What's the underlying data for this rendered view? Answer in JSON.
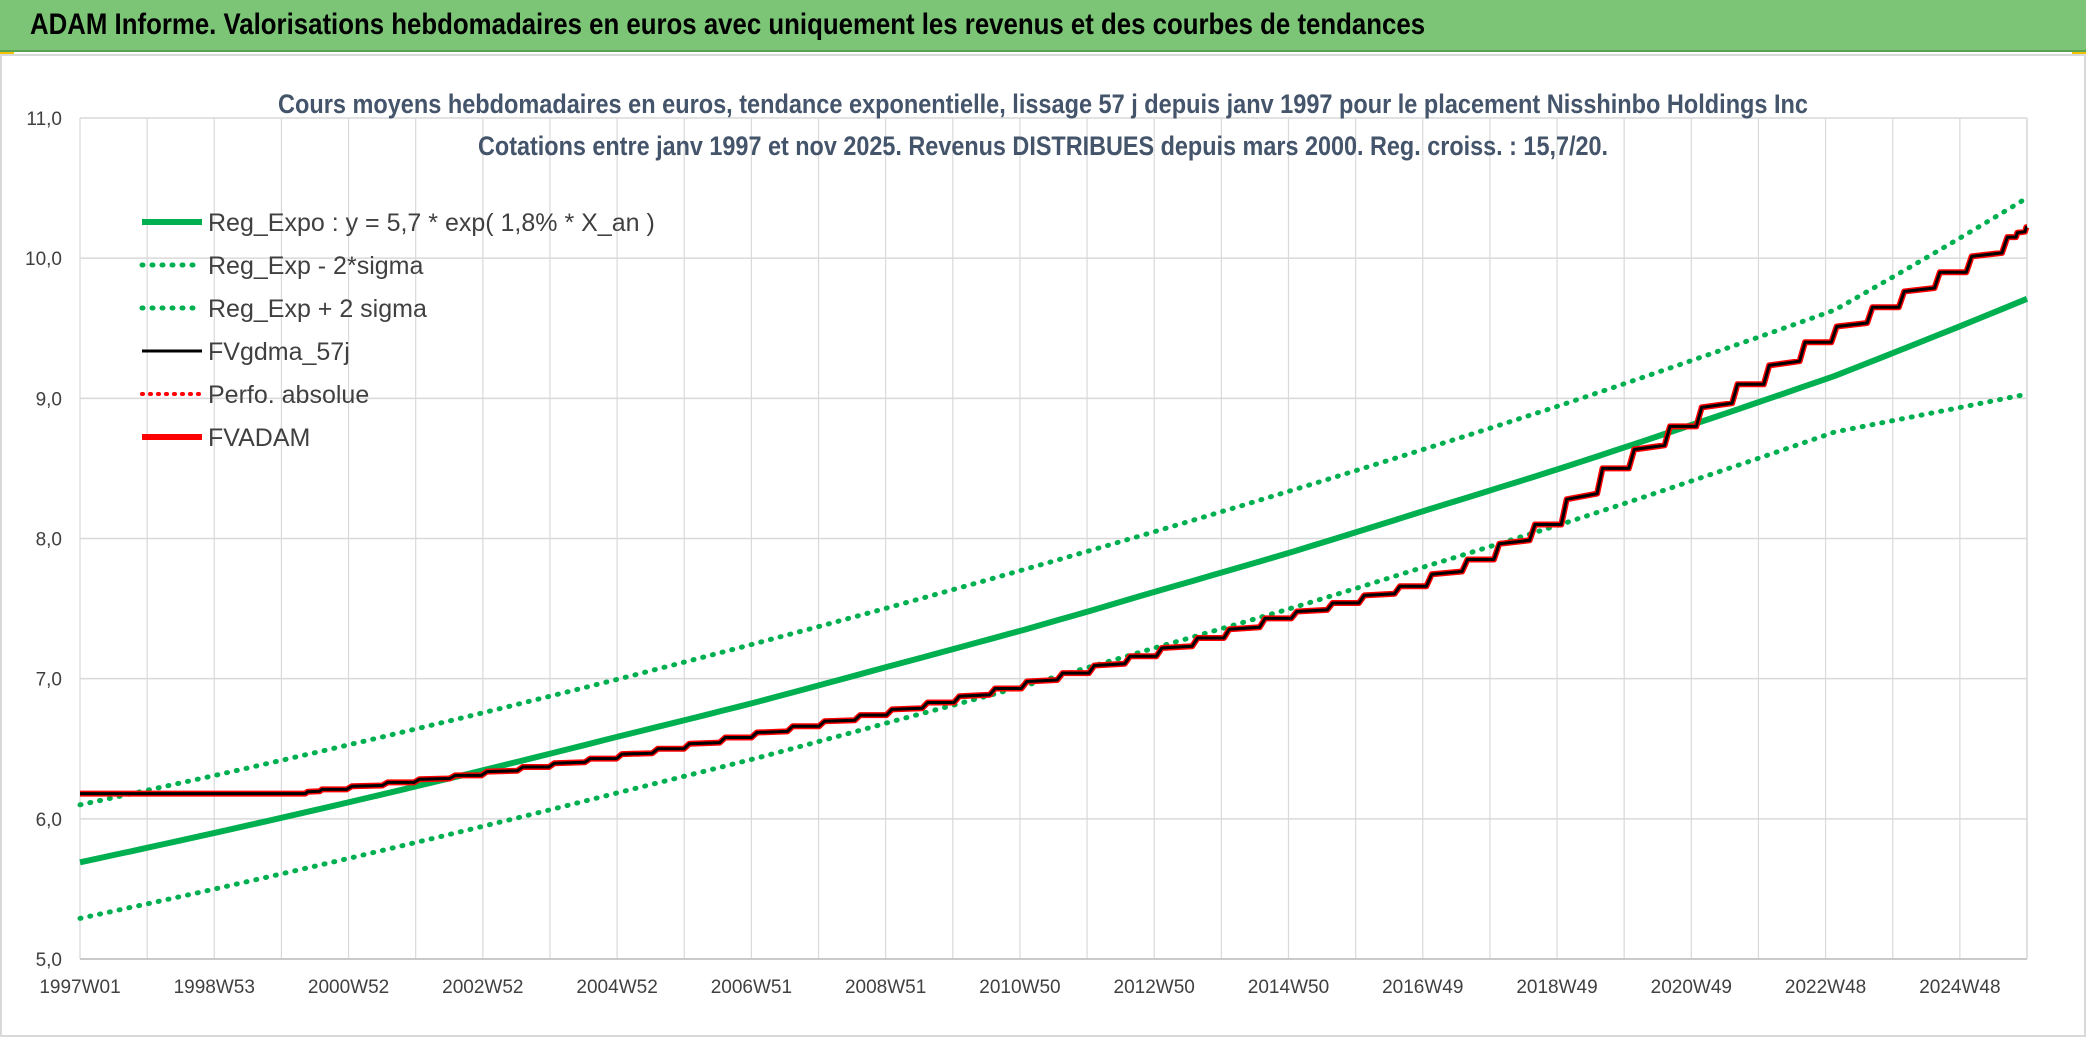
{
  "banner": {
    "title": "ADAM Informe. Valorisations hebdomadaires en euros avec uniquement les revenus et des courbes de tendances"
  },
  "colors": {
    "banner_bg": "#7cc576",
    "trend_green": "#00b050",
    "gdma_black": "#000000",
    "adam_red": "#ff0000",
    "title_text": "#44546a",
    "grid": "#d9d9d9"
  },
  "chart_data": {
    "type": "line",
    "title": "Cours moyens hebdomadaires en euros, tendance exponentielle, lissage 57 j depuis janv 1997 pour le placement Nisshinbo Holdings Inc",
    "subtitle": "Cotations entre janv 1997 et nov 2025. Revenus DISTRIBUES depuis mars 2000. Reg. croiss. : 15,7/20.",
    "xlabel": "",
    "ylabel": "",
    "x_ticks": [
      "1997W01",
      "1998W53",
      "2000W52",
      "2002W52",
      "2004W52",
      "2006W51",
      "2008W51",
      "2010W50",
      "2012W50",
      "2014W50",
      "2016W49",
      "2018W49",
      "2020W49",
      "2022W48",
      "2024W48"
    ],
    "x_range": [
      1997.0,
      2025.85
    ],
    "y_ticks": [
      "5,0",
      "6,0",
      "7,0",
      "8,0",
      "9,0",
      "10,0",
      "11,0"
    ],
    "ylim": [
      5.0,
      11.0
    ],
    "grid": true,
    "legend_position": "top-left",
    "series": [
      {
        "name": "Reg_Expo : y = 5,7 * exp( 1,8% *  X_an )",
        "style": "solid-thick",
        "x": [
          1997,
          1999,
          2001,
          2003,
          2005,
          2007,
          2009,
          2011,
          2013,
          2015,
          2017,
          2019,
          2021,
          2023,
          2025.85
        ],
        "y": [
          5.69,
          5.9,
          6.12,
          6.35,
          6.59,
          6.83,
          7.09,
          7.35,
          7.63,
          7.91,
          8.21,
          8.51,
          8.83,
          9.16,
          9.71
        ]
      },
      {
        "name": "Reg_Exp - 2*sigma",
        "style": "dotted",
        "x": [
          1997,
          1999,
          2001,
          2003,
          2005,
          2007,
          2009,
          2011,
          2013,
          2015,
          2017,
          2019,
          2021,
          2023,
          2025.85
        ],
        "y": [
          5.29,
          5.5,
          5.72,
          5.95,
          6.19,
          6.43,
          6.69,
          6.95,
          7.23,
          7.51,
          7.81,
          8.11,
          8.43,
          8.76,
          9.03
        ]
      },
      {
        "name": "Reg_Exp + 2 sigma",
        "style": "dotted",
        "x": [
          1997,
          1999,
          2001,
          2003,
          2005,
          2007,
          2009,
          2011,
          2013,
          2015,
          2017,
          2019,
          2021,
          2023,
          2025.85
        ],
        "y": [
          6.1,
          6.31,
          6.53,
          6.76,
          7.0,
          7.25,
          7.51,
          7.78,
          8.06,
          8.35,
          8.65,
          8.96,
          9.29,
          9.63,
          10.43
        ]
      },
      {
        "name": "FVgdma_57j",
        "style": "solid",
        "x": [
          1997.0,
          2000.2,
          2000.6,
          2001.6,
          2002.6,
          2003.6,
          2004.6,
          2005.6,
          2006.6,
          2007.6,
          2008.6,
          2009.6,
          2010.6,
          2011.6,
          2012.6,
          2013.6,
          2014.6,
          2015.6,
          2016.6,
          2017.6,
          2018.6,
          2019.6,
          2020.6,
          2021.6,
          2022.6,
          2023.6,
          2024.6,
          2025.6,
          2025.85
        ],
        "y": [
          6.18,
          6.18,
          6.21,
          6.26,
          6.31,
          6.37,
          6.43,
          6.5,
          6.58,
          6.66,
          6.74,
          6.83,
          6.93,
          7.04,
          7.16,
          7.29,
          7.43,
          7.54,
          7.66,
          7.85,
          8.1,
          8.5,
          8.8,
          9.1,
          9.4,
          9.65,
          9.9,
          10.15,
          10.22
        ]
      },
      {
        "name": "Perfo. absolue",
        "style": "dotted-red",
        "x": [],
        "y": []
      },
      {
        "name": "FVADAM",
        "style": "solid-thick-stepped",
        "x": [
          1997.0,
          2000.2,
          2000.6,
          2001.6,
          2002.6,
          2003.6,
          2004.6,
          2005.6,
          2006.6,
          2007.6,
          2008.6,
          2009.6,
          2010.6,
          2011.6,
          2012.6,
          2013.6,
          2014.6,
          2015.6,
          2016.6,
          2017.6,
          2018.6,
          2019.6,
          2020.6,
          2021.6,
          2022.6,
          2023.6,
          2024.6,
          2025.6,
          2025.85
        ],
        "y": [
          6.18,
          6.18,
          6.21,
          6.26,
          6.31,
          6.37,
          6.43,
          6.5,
          6.58,
          6.66,
          6.74,
          6.83,
          6.93,
          7.04,
          7.16,
          7.29,
          7.43,
          7.54,
          7.66,
          7.85,
          8.1,
          8.5,
          8.8,
          9.1,
          9.4,
          9.65,
          9.9,
          10.15,
          10.22
        ]
      }
    ]
  }
}
